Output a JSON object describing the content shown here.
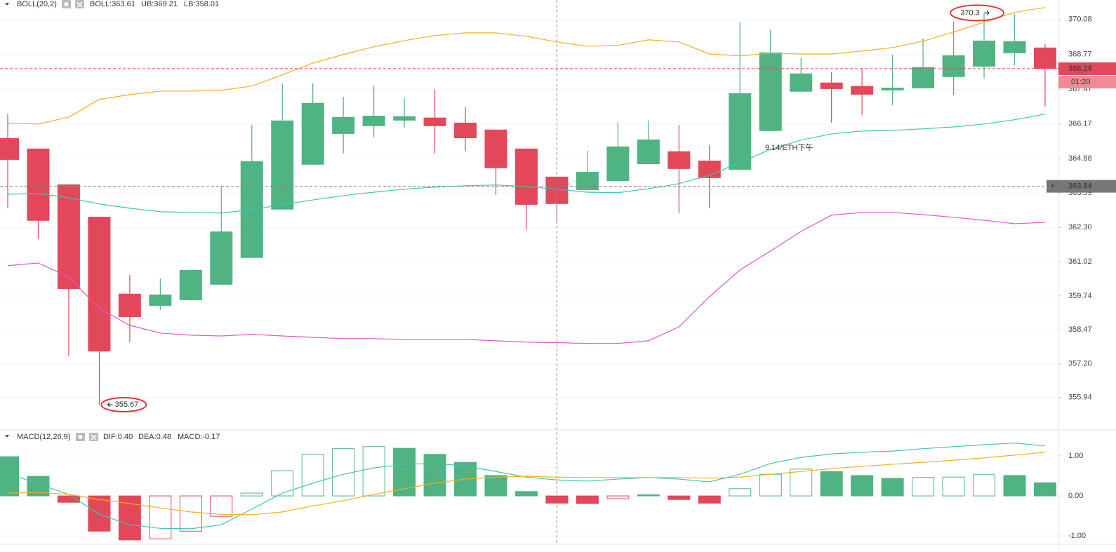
{
  "chart_data": [
    {
      "type": "candlestick",
      "title": "BOLL(20,2)",
      "annotation": "9.14/ETH下午",
      "up_color": "#4fb382",
      "down_color": "#e2475a",
      "open": [
        365.64,
        365.25,
        363.91,
        362.7,
        359.82,
        359.37,
        359.58,
        360.16,
        361.16,
        362.97,
        364.65,
        365.8,
        366.09,
        366.3,
        366.41,
        366.22,
        365.96,
        365.25,
        364.2,
        363.7,
        364.04,
        364.67,
        365.15,
        364.8,
        364.46,
        365.91,
        367.38,
        367.72,
        367.59,
        367.43,
        367.51,
        367.93,
        368.32,
        368.82,
        369.03
      ],
      "high": [
        366.56,
        365.25,
        363.91,
        362.7,
        360.53,
        360.39,
        360.71,
        363.83,
        366.14,
        367.69,
        367.69,
        367.19,
        367.59,
        367.14,
        367.46,
        366.8,
        365.96,
        365.25,
        364.2,
        365.17,
        366.25,
        366.3,
        366.14,
        365.38,
        369.98,
        369.69,
        368.64,
        368.11,
        368.27,
        368.77,
        369.37,
        370.0,
        370.3,
        370.28,
        369.16
      ],
      "low": [
        363.02,
        361.89,
        357.48,
        355.67,
        358.01,
        359.21,
        359.58,
        360.16,
        361.16,
        362.97,
        364.65,
        365.07,
        365.67,
        366.04,
        365.07,
        365.17,
        363.52,
        362.21,
        362.52,
        363.7,
        364.04,
        364.67,
        362.84,
        363.02,
        364.46,
        365.91,
        367.38,
        366.22,
        366.51,
        366.88,
        367.51,
        367.25,
        367.88,
        368.37,
        366.83
      ],
      "close": [
        364.83,
        362.55,
        360.0,
        357.66,
        358.95,
        359.79,
        360.71,
        362.15,
        364.78,
        366.3,
        366.96,
        366.43,
        366.48,
        366.46,
        366.09,
        365.64,
        364.52,
        363.15,
        363.18,
        364.38,
        365.33,
        365.59,
        364.49,
        364.15,
        367.32,
        368.85,
        368.06,
        367.48,
        367.27,
        367.53,
        368.3,
        368.74,
        369.29,
        369.27,
        368.24
      ],
      "series": [
        {
          "name": "BOLL:363.61",
          "color": "#3cc6b2",
          "values": [
            363.54,
            363.57,
            363.41,
            363.18,
            363.02,
            362.89,
            362.86,
            362.84,
            362.97,
            363.15,
            363.33,
            363.49,
            363.62,
            363.73,
            363.81,
            363.86,
            363.89,
            363.83,
            363.73,
            363.62,
            363.6,
            363.75,
            363.94,
            364.25,
            364.73,
            365.22,
            365.57,
            365.8,
            365.91,
            365.93,
            365.99,
            366.06,
            366.17,
            366.33,
            366.54
          ]
        },
        {
          "name": "UB:369.21",
          "color": "#f2b01e",
          "values": [
            366.2,
            366.17,
            366.43,
            367.09,
            367.27,
            367.4,
            367.4,
            367.43,
            367.59,
            368.01,
            368.45,
            368.77,
            369.06,
            369.29,
            369.48,
            369.58,
            369.58,
            369.45,
            369.24,
            369.08,
            369.11,
            369.32,
            369.24,
            368.79,
            368.72,
            368.82,
            368.79,
            368.79,
            368.9,
            369.03,
            369.27,
            369.61,
            369.98,
            370.35,
            370.53
          ]
        },
        {
          "name": "LB:358.01",
          "color": "#e655cc",
          "values": [
            360.87,
            360.97,
            360.45,
            359.27,
            358.64,
            358.35,
            358.27,
            358.24,
            358.3,
            358.24,
            358.19,
            358.14,
            358.14,
            358.11,
            358.11,
            358.11,
            358.06,
            358.01,
            357.99,
            357.96,
            357.96,
            358.06,
            358.58,
            359.71,
            360.71,
            361.42,
            362.15,
            362.76,
            362.86,
            362.86,
            362.78,
            362.68,
            362.57,
            362.44,
            362.49
          ]
        }
      ],
      "high_marker": 370.3,
      "low_marker": 355.67,
      "last_price": 368.24,
      "timer": "01:20",
      "crosshair_price": 363.84,
      "crosshair_button": "+",
      "ylim": [
        354.75,
        370.81
      ],
      "yticks": [
        370.08,
        368.77,
        367.47,
        366.17,
        364.88,
        363.59,
        {
          "value": 362.3,
          "label": "362.30"
        },
        361.02,
        359.74,
        358.47,
        {
          "value": 357.2,
          "label": "357.20"
        },
        355.94
      ],
      "grid": true
    },
    {
      "type": "macd",
      "title": "MACD(12,26,9)",
      "up_color": "#4fb382",
      "down_color": "#e2475a",
      "histogram": {
        "name": "MACD:-0.17",
        "values": [
          0.98,
          0.49,
          -0.16,
          -0.88,
          -1.1,
          -1.07,
          -0.88,
          -0.51,
          0.07,
          0.63,
          1.04,
          1.18,
          1.23,
          1.19,
          1.04,
          0.84,
          0.51,
          0.11,
          -0.18,
          -0.19,
          -0.07,
          0.03,
          -0.09,
          -0.18,
          0.18,
          0.54,
          0.67,
          0.61,
          0.51,
          0.44,
          0.46,
          0.47,
          0.53,
          0.51,
          0.33
        ],
        "filled": [
          true,
          true,
          true,
          true,
          true,
          false,
          false,
          false,
          false,
          false,
          false,
          false,
          false,
          true,
          true,
          true,
          true,
          true,
          true,
          true,
          false,
          true,
          true,
          true,
          false,
          false,
          false,
          true,
          true,
          true,
          false,
          false,
          false,
          true,
          true
        ]
      },
      "series": [
        {
          "name": "DIF:0.40",
          "color": "#3cc6b2",
          "values": [
            0.56,
            0.3,
            0.04,
            -0.46,
            -0.72,
            -0.81,
            -0.82,
            -0.72,
            -0.33,
            0.07,
            0.32,
            0.54,
            0.7,
            0.79,
            0.81,
            0.75,
            0.61,
            0.47,
            0.4,
            0.37,
            0.42,
            0.46,
            0.42,
            0.35,
            0.54,
            0.81,
            0.96,
            1.05,
            1.09,
            1.12,
            1.18,
            1.23,
            1.28,
            1.32,
            1.25
          ]
        },
        {
          "name": "DEA:0.48",
          "color": "#f2b01e",
          "values": [
            0.07,
            0.09,
            0.04,
            -0.09,
            -0.19,
            -0.3,
            -0.4,
            -0.46,
            -0.47,
            -0.4,
            -0.25,
            -0.12,
            0.04,
            0.18,
            0.32,
            0.42,
            0.47,
            0.49,
            0.47,
            0.46,
            0.46,
            0.46,
            0.46,
            0.44,
            0.47,
            0.54,
            0.61,
            0.68,
            0.74,
            0.79,
            0.84,
            0.89,
            0.95,
            1.02,
            1.09
          ]
        }
      ],
      "ylim": [
        -1.19,
        1.63
      ],
      "yticks": [
        {
          "value": 1,
          "label": "1.00"
        },
        {
          "value": 0,
          "label": "0.00"
        },
        {
          "value": -1,
          "label": "-1.00"
        }
      ],
      "grid": true
    }
  ]
}
